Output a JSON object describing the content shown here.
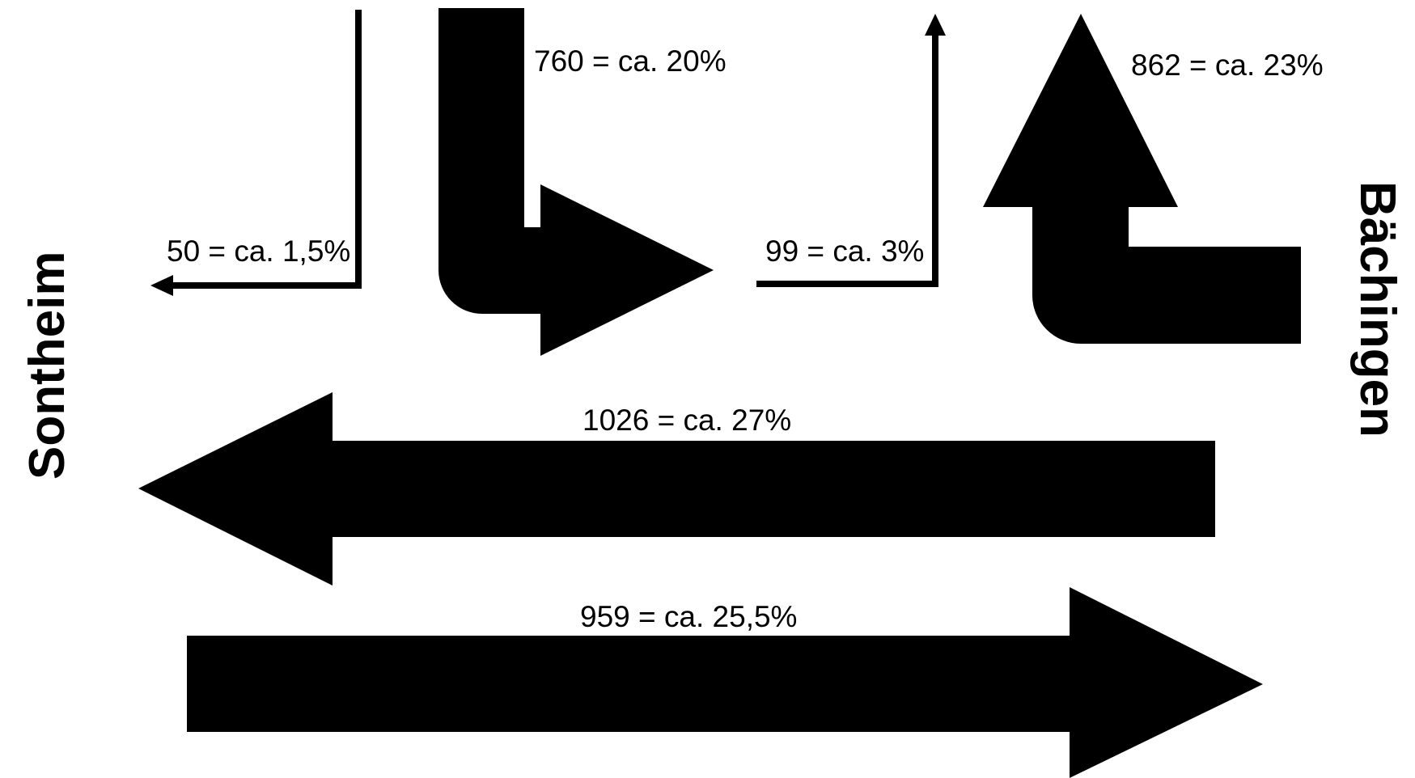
{
  "places": {
    "left": "Sontheim",
    "right": "Bächingen"
  },
  "flows": {
    "north_to_west": {
      "label": "50 = ca. 1,5%",
      "count": 50
    },
    "north_to_east": {
      "label": "760 = ca. 20%",
      "count": 760
    },
    "west_to_north": {
      "label": "99 = ca. 3%",
      "count": 99
    },
    "east_to_north": {
      "label": "862 = ca. 23%",
      "count": 862
    },
    "east_to_west": {
      "label": "1026 = ca. 27%",
      "count": 1026
    },
    "west_to_east": {
      "label": "959 = ca. 25,5%",
      "count": 959
    }
  },
  "colors": {
    "arrow": "#000000",
    "background": "#ffffff"
  }
}
